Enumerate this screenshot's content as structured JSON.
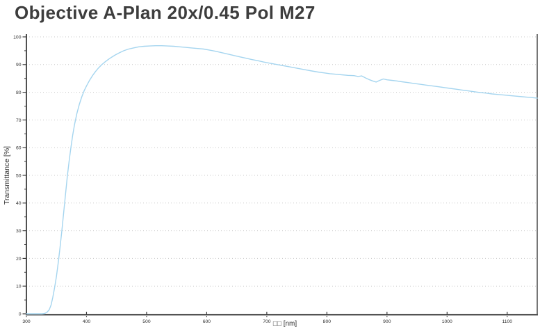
{
  "title": "Objective A-Plan 20x/0.45 Pol M27",
  "colors": {
    "curve": "#a5d5ef",
    "axis": "#3c3c3c",
    "axis_shadow": "#b8b8b8",
    "gridline": "#c8c8c8",
    "title_text": "#3d3d3d",
    "tick_text": "#2e2e2e",
    "background": "#ffffff"
  },
  "chart_data": {
    "type": "line",
    "title": "Objective A-Plan 20x/0.45 Pol M27",
    "xlabel": "□□ [nm]",
    "ylabel": "Transmittance [%]",
    "xlim": [
      300,
      1150
    ],
    "ylim": [
      0,
      100
    ],
    "xticks": [
      300,
      400,
      500,
      600,
      700,
      800,
      900,
      1000,
      1100
    ],
    "yticks": [
      0,
      10,
      20,
      30,
      40,
      50,
      60,
      70,
      80,
      90,
      100
    ],
    "y_minor_tick_step": 5,
    "grid": "horizontal-dotted",
    "legend": "none",
    "series": [
      {
        "name": "transmittance",
        "color": "#a5d5ef",
        "x": [
          300,
          310,
          320,
          326,
          330,
          334,
          338,
          341,
          344,
          347,
          350,
          353,
          356,
          359,
          362,
          365,
          368,
          371,
          374,
          377,
          380,
          384,
          388,
          392,
          396,
          400,
          405,
          410,
          415,
          420,
          425,
          430,
          436,
          442,
          448,
          455,
          462,
          470,
          478,
          487,
          496,
          505,
          515,
          525,
          535,
          545,
          555,
          565,
          575,
          585,
          595,
          605,
          615,
          625,
          635,
          645,
          655,
          665,
          675,
          685,
          695,
          705,
          715,
          725,
          735,
          745,
          755,
          765,
          775,
          785,
          795,
          805,
          815,
          825,
          835,
          845,
          852,
          858,
          864,
          870,
          876,
          882,
          888,
          894,
          900,
          908,
          916,
          925,
          935,
          945,
          955,
          965,
          975,
          985,
          995,
          1005,
          1015,
          1025,
          1035,
          1045,
          1055,
          1065,
          1075,
          1085,
          1095,
          1105,
          1115,
          1125,
          1135,
          1145,
          1150
        ],
        "y": [
          0,
          0,
          0,
          0,
          0.1,
          0.5,
          1.5,
          3.2,
          6,
          9.5,
          13.5,
          18.5,
          24,
          30,
          36.5,
          43,
          49.5,
          55,
          60,
          64.5,
          68.3,
          72.3,
          75.6,
          78.3,
          80.5,
          82.3,
          84.3,
          86,
          87.5,
          88.8,
          89.9,
          90.8,
          91.8,
          92.7,
          93.5,
          94.3,
          95,
          95.6,
          96,
          96.4,
          96.6,
          96.7,
          96.8,
          96.8,
          96.7,
          96.6,
          96.4,
          96.2,
          96,
          95.8,
          95.6,
          95.2,
          94.8,
          94.3,
          93.8,
          93.3,
          92.8,
          92.3,
          91.8,
          91.4,
          90.9,
          90.5,
          90.1,
          89.7,
          89.3,
          88.9,
          88.5,
          88.1,
          87.7,
          87.3,
          87,
          86.7,
          86.5,
          86.3,
          86.1,
          86,
          85.7,
          85.9,
          85.2,
          84.6,
          84.1,
          83.7,
          84.3,
          84.8,
          84.5,
          84.3,
          84.1,
          83.8,
          83.5,
          83.2,
          82.9,
          82.6,
          82.3,
          82,
          81.7,
          81.4,
          81.1,
          80.8,
          80.5,
          80.2,
          79.9,
          79.7,
          79.4,
          79.2,
          79,
          78.8,
          78.6,
          78.4,
          78.2,
          78,
          77.9
        ]
      }
    ]
  }
}
